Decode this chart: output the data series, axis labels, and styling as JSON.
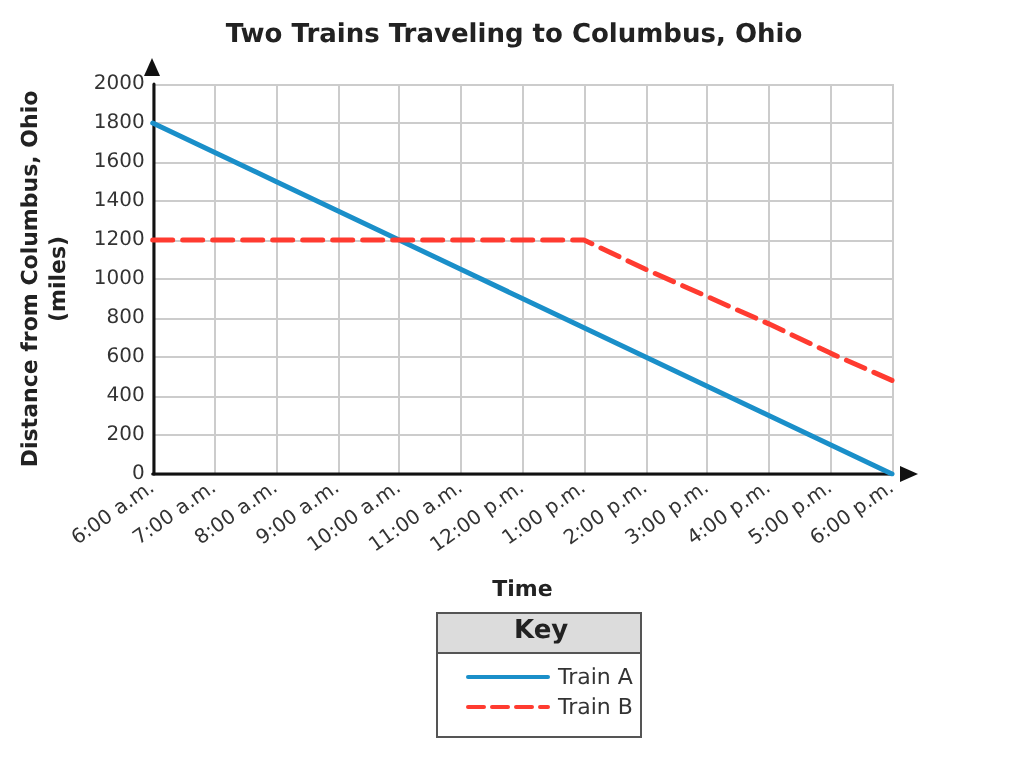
{
  "chart_data": {
    "type": "line",
    "title": "Two Trains Traveling to Columbus, Ohio",
    "xlabel": "Time",
    "ylabel": "Distance from Columbus, Ohio\n(miles)",
    "legend_title": "Key",
    "categories": [
      "6:00 a.m.",
      "7:00 a.m.",
      "8:00 a.m.",
      "9:00 a.m.",
      "10:00 a.m.",
      "11:00 a.m.",
      "12:00 p.m.",
      "1:00 p.m.",
      "2:00 p.m.",
      "3:00 p.m.",
      "4:00 p.m.",
      "5:00 p.m.",
      "6:00 p.m."
    ],
    "series": [
      {
        "name": "Train A",
        "color": "#1a8fc9",
        "line_style": "solid",
        "values": [
          1800,
          1650,
          1500,
          1350,
          1200,
          1050,
          900,
          750,
          600,
          450,
          300,
          150,
          0
        ]
      },
      {
        "name": "Train B",
        "color": "#ff3b30",
        "line_style": "dashed",
        "values": [
          1200,
          1200,
          1200,
          1200,
          1200,
          1200,
          1200,
          1200,
          1050,
          910,
          770,
          620,
          480
        ]
      }
    ],
    "ylim": [
      0,
      2000
    ],
    "yticks": [
      0,
      200,
      400,
      600,
      800,
      1000,
      1200,
      1400,
      1600,
      1800,
      2000
    ],
    "grid": true,
    "legend": "bottom",
    "marker": "none"
  }
}
